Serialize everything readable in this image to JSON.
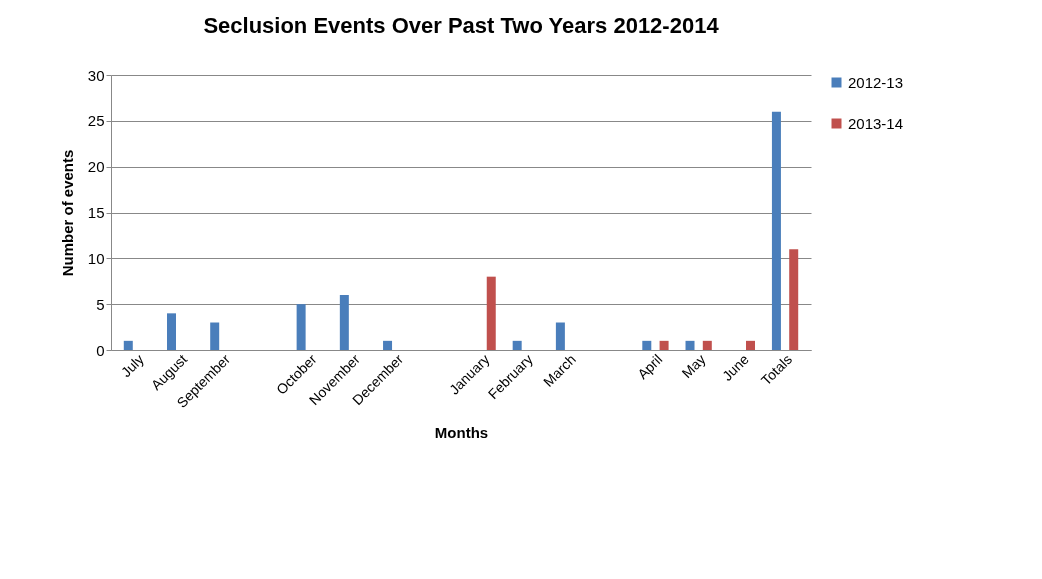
{
  "chart_data": {
    "type": "bar",
    "title": "Seclusion Events Over Past Two Years 2012-2014",
    "xlabel": "Months",
    "ylabel": "Number of events",
    "categories": [
      "July",
      "August",
      "September",
      null,
      "October",
      "November",
      "December",
      null,
      "January",
      "February",
      "March",
      null,
      "April",
      "May",
      "June",
      "Totals"
    ],
    "series": [
      {
        "name": "2012-13",
        "color": "#4a7ebb",
        "values": [
          1,
          4,
          3,
          null,
          5,
          6,
          1,
          null,
          0,
          1,
          3,
          null,
          1,
          1,
          0,
          26
        ]
      },
      {
        "name": "2013-14",
        "color": "#c0504d",
        "values": [
          0,
          0,
          0,
          null,
          0,
          0,
          0,
          null,
          8,
          0,
          0,
          null,
          1,
          1,
          1,
          11
        ]
      }
    ],
    "ylim": [
      0,
      30
    ],
    "yticks": [
      0,
      5,
      10,
      15,
      20,
      25,
      30
    ],
    "grid": "y",
    "legend": "right"
  }
}
